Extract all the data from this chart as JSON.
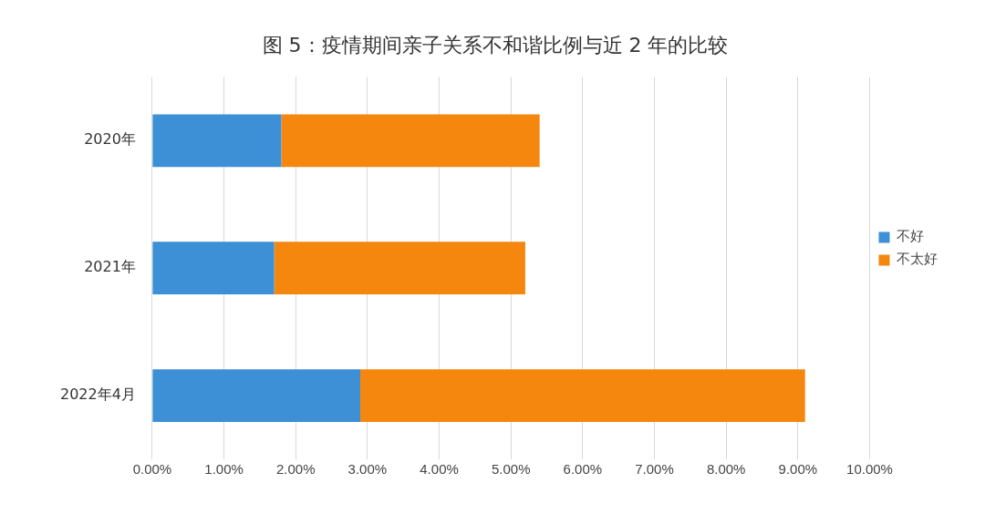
{
  "chart_data": {
    "type": "bar",
    "title": "图 5：疫情期间亲子关系不和谐比例与近 2 年的比较",
    "orientation": "horizontal",
    "stacked": true,
    "categories": [
      "2020年",
      "2021年",
      "2022年4月"
    ],
    "series": [
      {
        "name": "不好",
        "color": "#3d8fd6",
        "values": [
          1.8,
          1.7,
          2.9
        ]
      },
      {
        "name": "不太好",
        "color": "#f5870f",
        "values": [
          3.6,
          3.5,
          6.2
        ]
      }
    ],
    "xlim": [
      0,
      10
    ],
    "xticks": [
      {
        "value": 0,
        "label": "0.00%"
      },
      {
        "value": 1,
        "label": "1.00%"
      },
      {
        "value": 2,
        "label": "2.00%"
      },
      {
        "value": 3,
        "label": "3.00%"
      },
      {
        "value": 4,
        "label": "4.00%"
      },
      {
        "value": 5,
        "label": "5.00%"
      },
      {
        "value": 6,
        "label": "6.00%"
      },
      {
        "value": 7,
        "label": "7.00%"
      },
      {
        "value": 8,
        "label": "8.00%"
      },
      {
        "value": 9,
        "label": "9.00%"
      },
      {
        "value": 10,
        "label": "10.00%"
      }
    ],
    "grid": "x",
    "legend": "right"
  }
}
